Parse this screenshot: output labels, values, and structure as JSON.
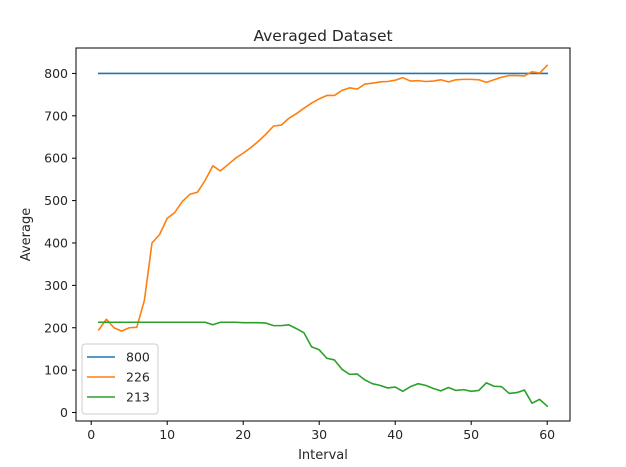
{
  "chart_data": {
    "type": "line",
    "title": "Averaged Dataset",
    "xlabel": "Interval",
    "ylabel": "Average",
    "xlim": [
      -2.0,
      63.0
    ],
    "ylim": [
      -20,
      860
    ],
    "xticks": [
      0,
      10,
      20,
      30,
      40,
      50,
      60
    ],
    "yticks": [
      0,
      100,
      200,
      300,
      400,
      500,
      600,
      700,
      800
    ],
    "grid": false,
    "legend_position": "lower-left",
    "x": [
      1,
      2,
      3,
      4,
      5,
      6,
      7,
      8,
      9,
      10,
      11,
      12,
      13,
      14,
      15,
      16,
      17,
      18,
      19,
      20,
      21,
      22,
      23,
      24,
      25,
      26,
      27,
      28,
      29,
      30,
      31,
      32,
      33,
      34,
      35,
      36,
      37,
      38,
      39,
      40,
      41,
      42,
      43,
      44,
      45,
      46,
      47,
      48,
      49,
      50,
      51,
      52,
      53,
      54,
      55,
      56,
      57,
      58,
      59,
      60
    ],
    "series": [
      {
        "name": "800",
        "color": "#1f77b4",
        "values": [
          800,
          800,
          800,
          800,
          800,
          800,
          800,
          800,
          800,
          800,
          800,
          800,
          800,
          800,
          800,
          800,
          800,
          800,
          800,
          800,
          800,
          800,
          800,
          800,
          800,
          800,
          800,
          800,
          800,
          800,
          800,
          800,
          800,
          800,
          800,
          800,
          800,
          800,
          800,
          800,
          800,
          800,
          800,
          800,
          800,
          800,
          800,
          800,
          800,
          800,
          800,
          800,
          800,
          800,
          800,
          800,
          800,
          800,
          800,
          800
        ]
      },
      {
        "name": "226",
        "color": "#ff7f0e",
        "values": [
          195,
          220,
          200,
          192,
          200,
          201,
          265,
          400,
          420,
          458,
          472,
          498,
          515,
          520,
          548,
          582,
          570,
          585,
          600,
          612,
          625,
          640,
          657,
          676,
          678,
          694,
          705,
          718,
          730,
          740,
          748,
          748,
          760,
          766,
          763,
          775,
          777,
          780,
          781,
          784,
          790,
          782,
          783,
          781,
          782,
          785,
          780,
          785,
          786,
          786,
          785,
          779,
          785,
          791,
          795,
          795,
          794,
          804,
          801,
          819
        ]
      },
      {
        "name": "213",
        "color": "#2ca02c",
        "values": [
          213,
          213,
          213,
          213,
          213,
          213,
          213,
          213,
          213,
          213,
          213,
          213,
          213,
          213,
          213,
          207,
          213,
          213,
          213,
          212,
          212,
          212,
          211,
          205,
          205,
          207,
          198,
          188,
          155,
          148,
          128,
          124,
          102,
          90,
          91,
          77,
          68,
          64,
          58,
          60,
          50,
          61,
          68,
          64,
          57,
          51,
          59,
          52,
          54,
          50,
          52,
          70,
          62,
          61,
          45,
          47,
          53,
          22,
          31,
          15
        ]
      }
    ]
  }
}
